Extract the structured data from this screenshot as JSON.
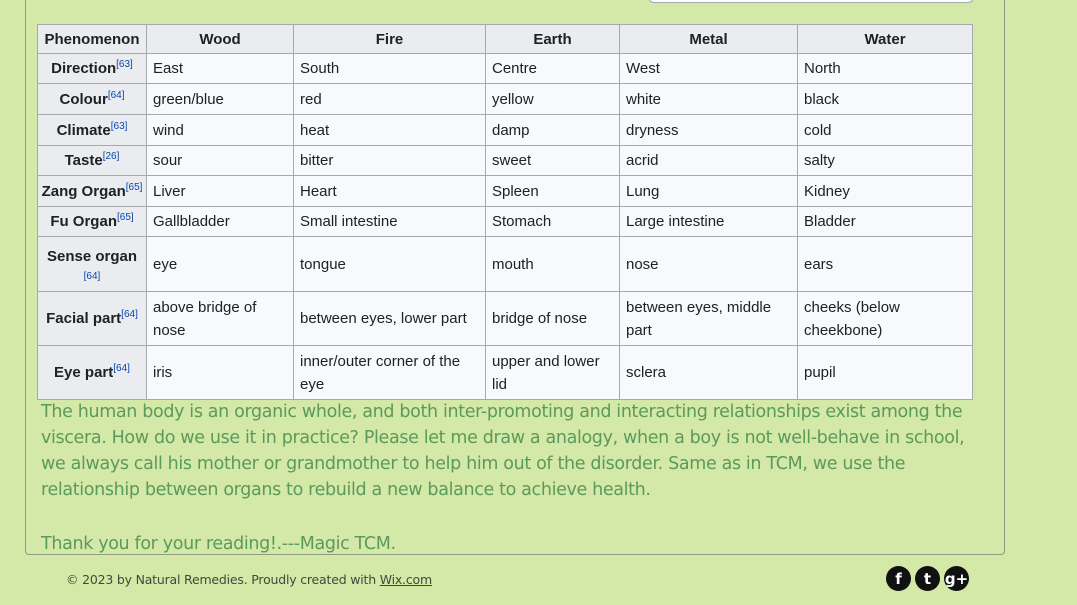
{
  "table": {
    "headers": [
      "Phenomenon",
      "Wood",
      "Fire",
      "Earth",
      "Metal",
      "Water"
    ],
    "rows": [
      {
        "label": "Direction",
        "ref": "[63]",
        "cells": [
          "East",
          "South",
          "Centre",
          "West",
          "North"
        ]
      },
      {
        "label": "Colour",
        "ref": "[64]",
        "cells": [
          "green/blue",
          "red",
          "yellow",
          "white",
          "black"
        ]
      },
      {
        "label": "Climate",
        "ref": "[63]",
        "cells": [
          "wind",
          "heat",
          "damp",
          "dryness",
          "cold"
        ]
      },
      {
        "label": "Taste",
        "ref": "[26]",
        "cells": [
          "sour",
          "bitter",
          "sweet",
          "acrid",
          "salty"
        ]
      },
      {
        "label": "Zang Organ",
        "ref": "[65]",
        "cells": [
          "Liver",
          "Heart",
          "Spleen",
          "Lung",
          "Kidney"
        ]
      },
      {
        "label": "Fu Organ",
        "ref": "[65]",
        "cells": [
          "Gallbladder",
          "Small intestine",
          "Stomach",
          "Large intestine",
          "Bladder"
        ]
      },
      {
        "label": "Sense organ",
        "ref": "[64]",
        "cells": [
          "eye",
          "tongue",
          "mouth",
          "nose",
          "ears"
        ]
      },
      {
        "label": "Facial part",
        "ref": "[64]",
        "cells": [
          "above bridge of nose",
          "between eyes, lower part",
          "bridge of nose",
          "between eyes, middle part",
          "cheeks (below cheekbone)"
        ]
      },
      {
        "label": "Eye part",
        "ref": "[64]",
        "cells": [
          "iris",
          "inner/outer corner of the eye",
          "upper and lower lid",
          "sclera",
          "pupil"
        ]
      }
    ]
  },
  "paragraph": "The human body is an organic whole, and both inter-promoting and interacting relationships exist among the viscera. How do we use it in practice? Please let me draw a analogy, when a boy is not well-behave in school, we always call his mother or grandmother to help him out of the disorder. Same as in TCM, we use the relationship between organs to rebuild a new balance to achieve health.",
  "thanks": "Thank you for your reading!.---Magic TCM.",
  "footer": {
    "prefix": "© 2023 by Natural Remedies. Proudly created with ",
    "link": "Wix.com"
  },
  "social": [
    {
      "icon": "facebook-icon",
      "glyph": "f"
    },
    {
      "icon": "twitter-icon",
      "glyph": "t"
    },
    {
      "icon": "google-plus-icon",
      "glyph": "g+"
    }
  ]
}
